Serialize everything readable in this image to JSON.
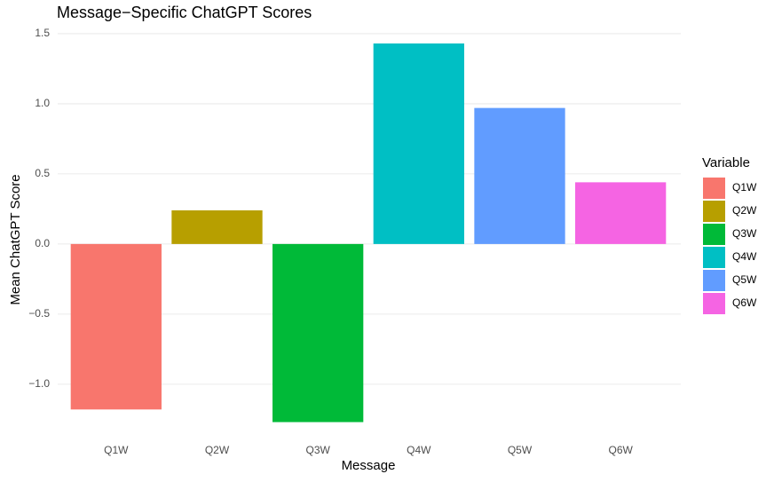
{
  "chart_data": {
    "type": "bar",
    "title": "Message−Specific ChatGPT Scores",
    "x_label": "Message",
    "y_label": "Mean ChatGPT Score",
    "legend_title": "Variable",
    "categories": [
      "Q1W",
      "Q2W",
      "Q3W",
      "Q4W",
      "Q5W",
      "Q6W"
    ],
    "values": [
      -1.18,
      0.24,
      -1.27,
      1.43,
      0.97,
      0.44
    ],
    "colors": [
      "#f8766d",
      "#b79f00",
      "#00ba38",
      "#00bfc4",
      "#619cff",
      "#f564e3"
    ],
    "ylim": [
      -1.33,
      1.55
    ],
    "yticks": [
      {
        "value": -1,
        "label": "−1.0"
      },
      {
        "value": -0.5,
        "label": "−0.5"
      },
      {
        "value": 0,
        "label": "0.0"
      },
      {
        "value": 0.5,
        "label": "0.5"
      },
      {
        "value": 1,
        "label": "1.0"
      },
      {
        "value": 1.5,
        "label": "1.5"
      }
    ],
    "grid": true,
    "legend_position": "right"
  }
}
